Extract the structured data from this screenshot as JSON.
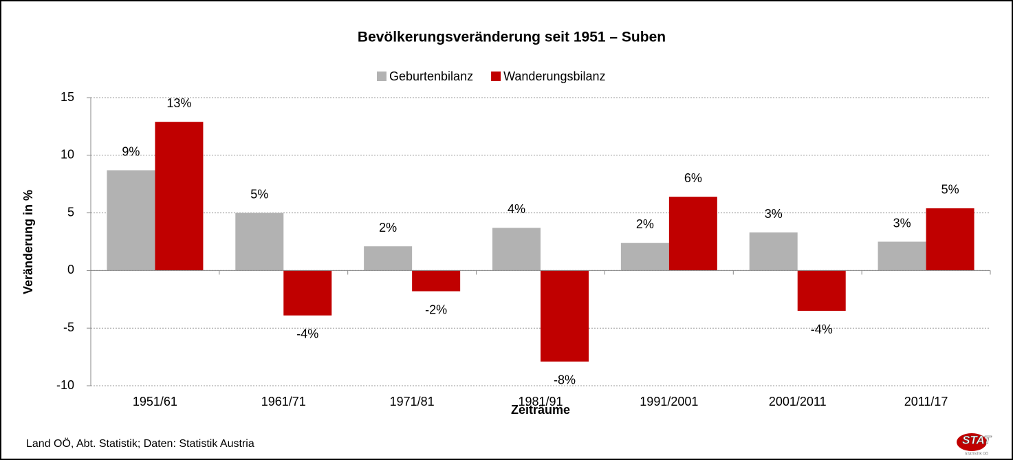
{
  "chart_data": {
    "type": "bar",
    "title": "Bevölkerungsveränderung seit 1951 – Suben",
    "x_label": "Zeiträume",
    "y_label": "Veränderung in %",
    "categories": [
      "1951/61",
      "1961/71",
      "1971/81",
      "1981/91",
      "1991/2001",
      "2001/2011",
      "2011/17"
    ],
    "series": [
      {
        "name": "Geburtenbilanz",
        "color": "#b2b2b2",
        "values": [
          8.7,
          5.0,
          2.1,
          3.7,
          2.4,
          3.3,
          2.5
        ],
        "value_labels": [
          "9%",
          "5%",
          "2%",
          "4%",
          "2%",
          "3%",
          "3%"
        ]
      },
      {
        "name": "Wanderungsbilanz",
        "color": "#c00000",
        "values": [
          12.9,
          -3.9,
          -1.8,
          -7.9,
          6.4,
          -3.5,
          5.4
        ],
        "value_labels": [
          "13%",
          "-4%",
          "-2%",
          "-8%",
          "6%",
          "-4%",
          "5%"
        ]
      }
    ],
    "ylim": [
      -10,
      15
    ],
    "yticks": [
      -10,
      -5,
      0,
      5,
      10,
      15
    ],
    "grid": true,
    "legend": "top",
    "source": "Land OÖ, Abt. Statistik; Daten: Statistik Austria",
    "logo": {
      "text": "STAT",
      "subtext": "STATISTIK OÖ"
    }
  }
}
